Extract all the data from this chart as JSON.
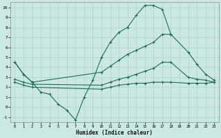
{
  "xlabel": "Humidex (Indice chaleur)",
  "bg_color": "#cce8e2",
  "grid_color": "#aad4cc",
  "line_color": "#1a6b5a",
  "xlim": [
    -0.5,
    23.5
  ],
  "ylim": [
    -1.5,
    10.5
  ],
  "xticks": [
    0,
    1,
    2,
    3,
    4,
    5,
    6,
    7,
    8,
    9,
    10,
    11,
    12,
    13,
    14,
    15,
    16,
    17,
    18,
    19,
    20,
    21,
    22,
    23
  ],
  "yticks": [
    -1,
    0,
    1,
    2,
    3,
    4,
    5,
    6,
    7,
    8,
    9,
    10
  ],
  "line1_x": [
    0,
    1,
    2,
    3,
    4,
    5,
    6,
    7,
    8,
    9,
    10,
    11,
    12,
    13,
    14,
    15,
    16,
    17,
    18
  ],
  "line1_y": [
    4.5,
    3.3,
    2.5,
    1.5,
    1.3,
    0.3,
    -0.3,
    -1.3,
    1.0,
    2.7,
    5.0,
    6.5,
    7.5,
    8.0,
    9.2,
    10.2,
    10.2,
    9.8,
    7.3
  ],
  "line2_x": [
    0,
    1,
    2,
    10,
    11,
    12,
    13,
    14,
    15,
    16,
    17,
    18,
    20,
    21,
    22,
    23
  ],
  "line2_y": [
    4.5,
    3.3,
    2.5,
    3.5,
    4.1,
    4.7,
    5.3,
    5.7,
    6.1,
    6.5,
    7.3,
    7.3,
    5.5,
    4.3,
    3.3,
    2.7
  ],
  "line3_x": [
    0,
    1,
    2,
    10,
    11,
    12,
    13,
    14,
    15,
    16,
    17,
    18,
    20,
    21,
    22,
    23
  ],
  "line3_y": [
    2.8,
    2.5,
    2.3,
    2.2,
    2.5,
    2.8,
    3.0,
    3.3,
    3.6,
    3.9,
    4.5,
    4.5,
    3.0,
    2.8,
    2.7,
    2.5
  ],
  "line4_x": [
    0,
    1,
    2,
    10,
    11,
    12,
    13,
    14,
    15,
    16,
    17,
    18,
    20,
    21,
    22,
    23
  ],
  "line4_y": [
    2.5,
    2.2,
    2.0,
    1.8,
    2.0,
    2.2,
    2.3,
    2.4,
    2.4,
    2.5,
    2.5,
    2.5,
    2.4,
    2.4,
    2.4,
    2.5
  ]
}
